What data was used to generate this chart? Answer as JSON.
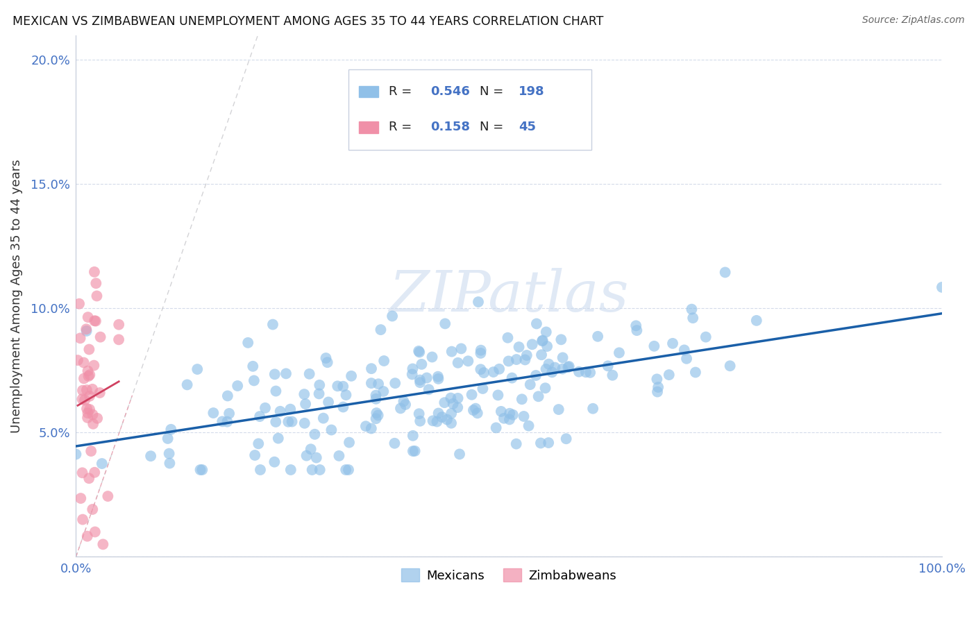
{
  "title": "MEXICAN VS ZIMBABWEAN UNEMPLOYMENT AMONG AGES 35 TO 44 YEARS CORRELATION CHART",
  "source": "Source: ZipAtlas.com",
  "ylabel": "Unemployment Among Ages 35 to 44 years",
  "mexican_color": "#90c0e8",
  "zimbabwean_color": "#f090a8",
  "mexican_line_color": "#1a5fa8",
  "zimbabwean_line_color": "#d04060",
  "diagonal_gray": "#c8c8cc",
  "diagonal_pink": "#e8a0b0",
  "watermark_color": "#c8d8ee",
  "watermark_text": "ZIPatlas",
  "xlim": [
    0.0,
    1.0
  ],
  "ylim": [
    0.0,
    0.21
  ],
  "xtick_pos": [
    0.0,
    0.2,
    0.4,
    0.6,
    0.8,
    1.0
  ],
  "xtick_labels": [
    "0.0%",
    "",
    "",
    "",
    "",
    "100.0%"
  ],
  "ytick_pos": [
    0.0,
    0.05,
    0.1,
    0.15,
    0.2
  ],
  "ytick_labels": [
    "",
    "5.0%",
    "10.0%",
    "15.0%",
    "20.0%"
  ],
  "tick_color": "#4472c4",
  "grid_color": "#d0d8e8",
  "mexican_R": 0.546,
  "mexican_N": 198,
  "zimbabwean_R": 0.158,
  "zimbabwean_N": 45,
  "mexican_seed": 42,
  "zimbabwean_seed": 99
}
